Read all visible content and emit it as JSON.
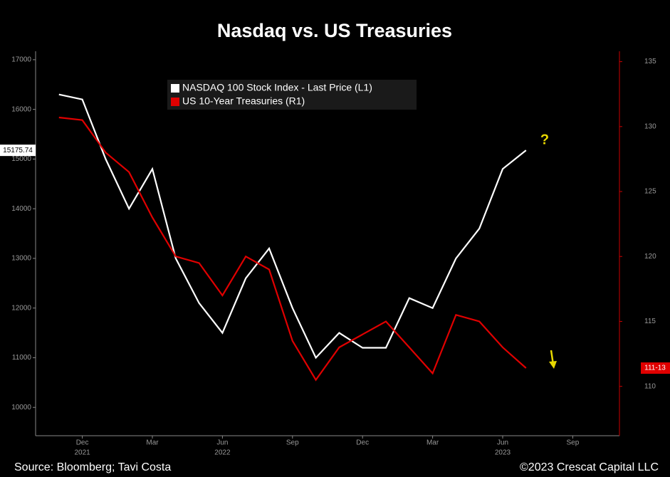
{
  "chart_data": {
    "type": "line",
    "title": "Nasdaq vs. US Treasuries",
    "source": "Source: Bloomberg; Tavi Costa",
    "copyright": "©2023 Crescat Capital LLC",
    "x": [
      "2021-11",
      "2021-12",
      "2022-01",
      "2022-02",
      "2022-03",
      "2022-04",
      "2022-05",
      "2022-06",
      "2022-07",
      "2022-08",
      "2022-09",
      "2022-10",
      "2022-11",
      "2022-12",
      "2023-01",
      "2023-02",
      "2023-03",
      "2023-04",
      "2023-05",
      "2023-06",
      "2023-07"
    ],
    "xlim": [
      "2021-10",
      "2023-11"
    ],
    "xticks": [
      {
        "value": "2021-12",
        "label": "Dec"
      },
      {
        "value": "2022-03",
        "label": "Mar"
      },
      {
        "value": "2022-06",
        "label": "Jun"
      },
      {
        "value": "2022-09",
        "label": "Sep"
      },
      {
        "value": "2022-12",
        "label": "Dec"
      },
      {
        "value": "2023-03",
        "label": "Mar"
      },
      {
        "value": "2023-06",
        "label": "Jun"
      },
      {
        "value": "2023-09",
        "label": "Sep"
      }
    ],
    "year_labels": [
      {
        "value": "2021-12",
        "label": "2021"
      },
      {
        "value": "2022-06",
        "label": "2022"
      },
      {
        "value": "2023-06",
        "label": "2023"
      }
    ],
    "ylim": [
      9430,
      17170
    ],
    "yticks": [
      10000,
      11000,
      12000,
      13000,
      14000,
      15000,
      16000,
      17000
    ],
    "y2lim": [
      106.2,
      135.8
    ],
    "y2ticks": [
      110,
      115,
      120,
      125,
      130,
      135
    ],
    "series": [
      {
        "name": "NASDAQ 100 Stock Index - Last Price (L1)",
        "color": "#ffffff",
        "values": [
          16300,
          16200,
          15000,
          14000,
          14800,
          13000,
          12100,
          11500,
          12600,
          13200,
          12000,
          11000,
          11500,
          11200,
          11200,
          12200,
          12000,
          13000,
          13600,
          14800,
          15175.74
        ],
        "last_label": "15175.74"
      },
      {
        "name": "US 10-Year Treasuries (R1)",
        "color": "#e00000",
        "axis": "y2",
        "values": [
          130.7,
          130.5,
          128,
          126.5,
          123,
          120,
          119.5,
          117,
          120,
          119,
          113.5,
          110.5,
          113,
          114,
          115,
          113,
          111,
          115.5,
          115,
          113,
          111.40625
        ],
        "last_label": "111-13"
      }
    ],
    "annotations": [
      "?"
    ]
  }
}
